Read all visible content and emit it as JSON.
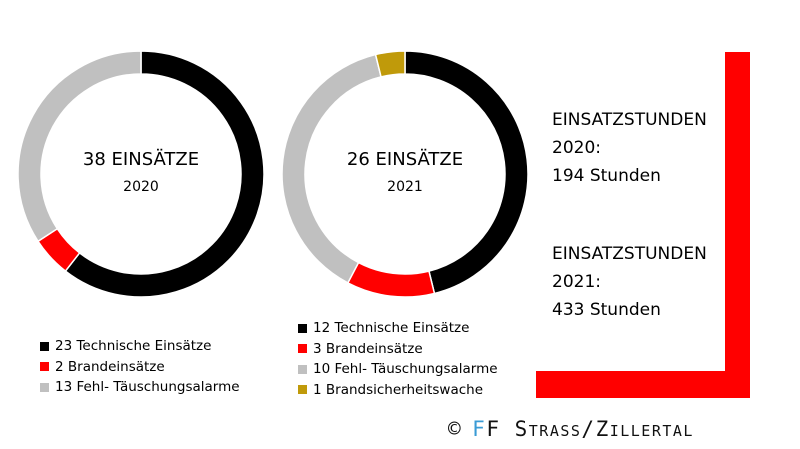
{
  "chart_data": [
    {
      "type": "pie",
      "title": "38 EINSÄTZE",
      "subtitle": "2020",
      "categories": [
        "Technische Einsätze",
        "Brandeinsätze",
        "Fehl- Täuschungsalarme"
      ],
      "values": [
        23,
        2,
        13
      ],
      "colors": [
        "#000000",
        "#ff0000",
        "#c0c0c0"
      ],
      "legend": [
        {
          "label": "23 Technische Einsätze",
          "color": "#000000"
        },
        {
          "label": "2 Brandeinsätze",
          "color": "#ff0000"
        },
        {
          "label": "13 Fehl- Täuschungsalarme",
          "color": "#c0c0c0"
        }
      ]
    },
    {
      "type": "pie",
      "title": "26 EINSÄTZE",
      "subtitle": "2021",
      "categories": [
        "Technische Einsätze",
        "Brandeinsätze",
        "Fehl- Täuschungsalarme",
        "Brandsicherheitswache"
      ],
      "values": [
        12,
        3,
        10,
        1
      ],
      "colors": [
        "#000000",
        "#ff0000",
        "#c0c0c0",
        "#c09a0a"
      ],
      "legend": [
        {
          "label": "12 Technische Einsätze",
          "color": "#000000"
        },
        {
          "label": "3 Brandeinsätze",
          "color": "#ff0000"
        },
        {
          "label": "10 Fehl- Täuschungsalarme",
          "color": "#c0c0c0"
        },
        {
          "label": "1 Brandsicherheitswache",
          "color": "#c09a0a"
        }
      ]
    }
  ],
  "stats": {
    "block_2020": {
      "line1": "EINSATZSTUNDEN",
      "line2": "2020:",
      "line3": "194 Stunden"
    },
    "block_2021": {
      "line1": "EINSATZSTUNDEN",
      "line2": "2021:",
      "line3": "433 Stunden"
    }
  },
  "bracket_color": "#ff0000",
  "copyright": {
    "symbol": "©",
    "ff_first": "F",
    "ff_second": "F",
    "rest": "Strass/Zillertal"
  }
}
